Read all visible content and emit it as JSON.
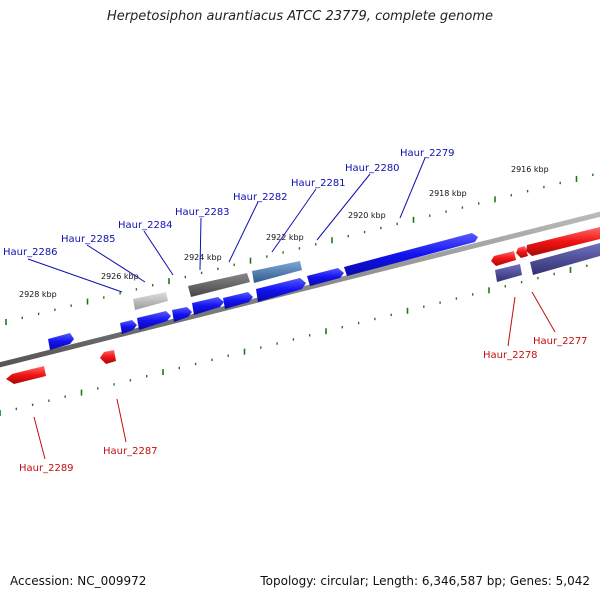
{
  "title": "Herpetosiphon aurantiacus ATCC 23779, complete genome",
  "footer": {
    "accession": "Accession: NC_009972",
    "topology": "Topology: circular; Length: 6,346,587 bp; Genes: 5,042"
  },
  "colors": {
    "forward": "#1010e8",
    "reverse": "#e81010",
    "backbone": "#8a8a8a",
    "tick": "#1a7a1a",
    "forward_label": "#1010b0",
    "reverse_label": "#c01010"
  },
  "scale_labels": [
    "2916 kbp",
    "2918 kbp",
    "2920 kbp",
    "2922 kbp",
    "2924 kbp",
    "2926 kbp",
    "2928 kbp"
  ],
  "gene_labels": {
    "forward": [
      "Haur_2279",
      "Haur_2280",
      "Haur_2281",
      "Haur_2282",
      "Haur_2283",
      "Haur_2284",
      "Haur_2285",
      "Haur_2286"
    ],
    "reverse": [
      "Haur_2277",
      "Haur_2278",
      "Haur_2287",
      "Haur_2289"
    ]
  }
}
